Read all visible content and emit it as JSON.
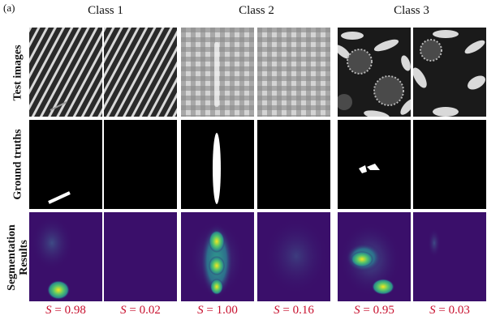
{
  "panel_label": "(a)",
  "class_titles": [
    "Class 1",
    "Class 2",
    "Class 3"
  ],
  "row_labels": {
    "test_images": "Test images",
    "ground_truths": "Ground truths",
    "segmentation_line1": "Segmentation",
    "segmentation_line2": "Results"
  },
  "scores": [
    {
      "symbol": "S",
      "value": "= 0.98"
    },
    {
      "symbol": "S",
      "value": "= 0.02"
    },
    {
      "symbol": "S",
      "value": "= 1.00"
    },
    {
      "symbol": "S",
      "value": "= 0.16"
    },
    {
      "symbol": "S",
      "value": "= 0.95"
    },
    {
      "symbol": "S",
      "value": "= 0.03"
    }
  ],
  "colors": {
    "score_text": "#c8102e",
    "seg_background": "#3a0f6a",
    "seg_hot": "#f4e620"
  }
}
